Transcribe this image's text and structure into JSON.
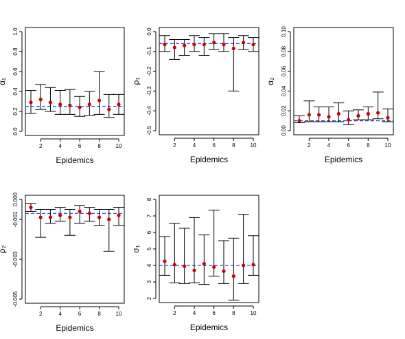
{
  "colors": {
    "point": "#cc0000",
    "true_value_line": "#3a3ad0",
    "interval": "#000000"
  },
  "chart_data": [
    {
      "type": "scatter",
      "panel": "alpha1",
      "ylabel": "α₁",
      "xlabel": "Epidemics",
      "x": [
        1,
        2,
        3,
        4,
        5,
        6,
        7,
        8,
        9,
        10
      ],
      "values": [
        0.29,
        0.32,
        0.29,
        0.27,
        0.26,
        0.24,
        0.27,
        0.31,
        0.22,
        0.27
      ],
      "lower": [
        0.18,
        0.22,
        0.2,
        0.17,
        0.17,
        0.15,
        0.16,
        0.17,
        0.14,
        0.17
      ],
      "upper": [
        0.41,
        0.47,
        0.44,
        0.41,
        0.42,
        0.35,
        0.4,
        0.6,
        0.37,
        0.37
      ],
      "true_value": 0.25,
      "ylim": [
        0,
        1
      ],
      "xlim": [
        1,
        10
      ],
      "xticks": [
        2,
        4,
        6,
        8,
        10
      ],
      "xtick_labels": [
        "2",
        "4",
        "6",
        "8",
        "10"
      ],
      "yticks": [
        0,
        0.2,
        0.4,
        0.6,
        0.8,
        1
      ],
      "ytick_labels": [
        "0.0",
        "0.2",
        "0.4",
        "0.6",
        "0.8",
        "1.0"
      ]
    },
    {
      "type": "scatter",
      "panel": "rho1",
      "ylabel": "ρ₁",
      "xlabel": "Epidemics",
      "x": [
        1,
        2,
        3,
        4,
        5,
        6,
        7,
        8,
        9,
        10
      ],
      "values": [
        -0.065,
        -0.08,
        -0.07,
        -0.065,
        -0.065,
        -0.055,
        -0.065,
        -0.085,
        -0.055,
        -0.065
      ],
      "lower": [
        -0.1,
        -0.14,
        -0.12,
        -0.1,
        -0.12,
        -0.09,
        -0.1,
        -0.3,
        -0.09,
        -0.1
      ],
      "upper": [
        -0.02,
        -0.04,
        -0.04,
        -0.02,
        -0.03,
        -0.01,
        -0.01,
        -0.03,
        -0.02,
        -0.03
      ],
      "true_value": -0.06,
      "ylim": [
        -0.5,
        0
      ],
      "xlim": [
        1,
        10
      ],
      "xticks": [
        2,
        4,
        6,
        8,
        10
      ],
      "xtick_labels": [
        "2",
        "4",
        "6",
        "8",
        "10"
      ],
      "yticks": [
        0,
        -0.1,
        -0.2,
        -0.3,
        -0.4,
        -0.5
      ],
      "ytick_labels": [
        "0.0",
        "-0.1",
        "-0.2",
        "-0.3",
        "-0.4",
        "-0.5"
      ]
    },
    {
      "type": "scatter",
      "panel": "alpha2",
      "ylabel": "α₂",
      "xlabel": "Epidemics",
      "x": [
        1,
        2,
        3,
        4,
        5,
        6,
        7,
        8,
        9,
        10
      ],
      "values": [
        0.01,
        0.016,
        0.016,
        0.014,
        0.017,
        0.011,
        0.015,
        0.017,
        0.018,
        0.013
      ],
      "lower": [
        0.008,
        0.009,
        0.009,
        0.009,
        0.009,
        0.006,
        0.011,
        0.011,
        0.012,
        0.009
      ],
      "upper": [
        0.015,
        0.03,
        0.024,
        0.024,
        0.028,
        0.02,
        0.021,
        0.024,
        0.039,
        0.022
      ],
      "true_value": 0.01,
      "ylim": [
        0,
        0.1
      ],
      "xlim": [
        1,
        10
      ],
      "xticks": [
        2,
        4,
        6,
        8,
        10
      ],
      "xtick_labels": [
        "2",
        "4",
        "6",
        "8",
        "10"
      ],
      "yticks": [
        0,
        0.02,
        0.04,
        0.06,
        0.08,
        0.1
      ],
      "ytick_labels": [
        "0.00",
        "0.02",
        "0.04",
        "0.06",
        "0.08",
        "0.10"
      ]
    },
    {
      "type": "scatter",
      "panel": "rho2",
      "ylabel": "ρ₂",
      "xlabel": "Epidemics",
      "x": [
        1,
        2,
        3,
        4,
        5,
        6,
        7,
        8,
        9,
        10
      ],
      "values": [
        -0.0004,
        -0.0009,
        -0.0009,
        -0.0008,
        -0.0009,
        -0.0006,
        -0.0007,
        -0.0009,
        -0.001,
        -0.0008
      ],
      "lower": [
        -0.0006,
        -0.0019,
        -0.0012,
        -0.0011,
        -0.0018,
        -0.0012,
        -0.0011,
        -0.0013,
        -0.0026,
        -0.0013
      ],
      "upper": [
        -0.0002,
        -0.0005,
        -0.0005,
        -0.0004,
        -0.0005,
        -0.0003,
        -0.0004,
        -0.0005,
        -0.0005,
        -0.0004
      ],
      "true_value": -0.0007,
      "ylim": [
        -0.005,
        0
      ],
      "xlim": [
        1,
        10
      ],
      "xticks": [
        2,
        4,
        6,
        8,
        10
      ],
      "xtick_labels": [
        "2",
        "4",
        "6",
        "8",
        "10"
      ],
      "yticks": [
        0,
        -0.001,
        -0.003,
        -0.005
      ],
      "ytick_labels": [
        "0.000",
        "-0.001",
        "-0.003",
        "-0.005"
      ]
    },
    {
      "type": "scatter",
      "panel": "sigma1",
      "ylabel": "σ₁",
      "xlabel": "Epidemics",
      "x": [
        1,
        2,
        3,
        4,
        5,
        6,
        7,
        8,
        9,
        10
      ],
      "values": [
        4.25,
        4.05,
        3.95,
        3.7,
        4.1,
        3.9,
        3.65,
        3.35,
        4.0,
        4.05
      ],
      "lower": [
        3.4,
        2.95,
        2.9,
        2.95,
        2.85,
        3.35,
        2.9,
        1.9,
        2.9,
        3.4
      ],
      "upper": [
        5.75,
        6.55,
        6.25,
        6.9,
        5.85,
        7.35,
        5.5,
        5.65,
        7.1,
        5.8
      ],
      "true_value": 4.0,
      "ylim": [
        2,
        8
      ],
      "xlim": [
        1,
        10
      ],
      "xticks": [
        2,
        4,
        6,
        8,
        10
      ],
      "xtick_labels": [
        "2",
        "4",
        "6",
        "8",
        "10"
      ],
      "yticks": [
        2,
        3,
        4,
        5,
        6,
        7,
        8
      ],
      "ytick_labels": [
        "2",
        "3",
        "4",
        "5",
        "6",
        "7",
        "8"
      ]
    }
  ]
}
